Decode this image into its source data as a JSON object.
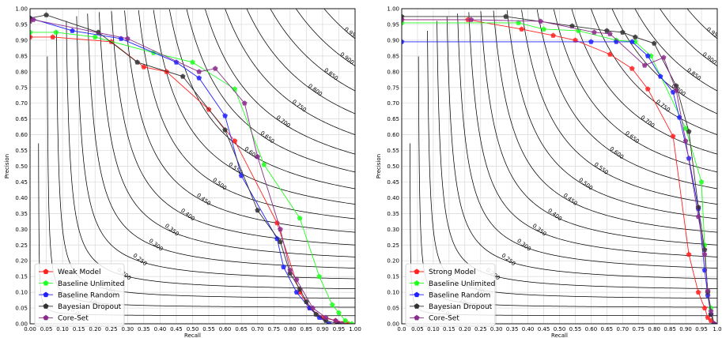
{
  "chart_data": [
    {
      "type": "line",
      "xlabel": "Recall",
      "ylabel": "Precision",
      "xlim": [
        0,
        1
      ],
      "ylim": [
        0,
        1
      ],
      "grid": true,
      "legend_position": "bottom-left",
      "xticks": [
        "0.00",
        "0.05",
        "0.10",
        "0.15",
        "0.20",
        "0.25",
        "0.30",
        "0.35",
        "0.40",
        "0.45",
        "0.50",
        "0.55",
        "0.60",
        "0.65",
        "0.70",
        "0.75",
        "0.80",
        "0.85",
        "0.90",
        "0.95",
        "1.00"
      ],
      "yticks": [
        "0.00",
        "0.05",
        "0.10",
        "0.15",
        "0.20",
        "0.25",
        "0.30",
        "0.35",
        "0.40",
        "0.45",
        "0.50",
        "0.55",
        "0.60",
        "0.65",
        "0.70",
        "0.75",
        "0.80",
        "0.85",
        "0.90",
        "0.95",
        "1.00"
      ],
      "iso_f1_lines": [
        "0.05",
        "0.100",
        "0.150",
        "0.200",
        "0.250",
        "0.300",
        "0.350",
        "0.400",
        "0.450",
        "0.500",
        "0.550",
        "0.600",
        "0.650",
        "0.700",
        "0.750",
        "0.800",
        "0.850",
        "0.900",
        "0.950"
      ],
      "series": [
        {
          "name": "Weak Model",
          "color": "#ff2020",
          "x": [
            0.0,
            0.07,
            0.25,
            0.35,
            0.42,
            0.55,
            0.63,
            0.76,
            0.83,
            0.86,
            0.9,
            0.94,
            0.97,
            0.98
          ],
          "y": [
            0.91,
            0.91,
            0.895,
            0.815,
            0.8,
            0.68,
            0.58,
            0.32,
            0.1,
            0.05,
            0.02,
            0.01,
            0.005,
            0.0
          ]
        },
        {
          "name": "Baseline Unlimited",
          "color": "#20ff20",
          "x": [
            0.0,
            0.08,
            0.2,
            0.38,
            0.5,
            0.63,
            0.72,
            0.83,
            0.89,
            0.93,
            0.95,
            0.97,
            0.99
          ],
          "y": [
            0.925,
            0.925,
            0.91,
            0.86,
            0.83,
            0.745,
            0.505,
            0.335,
            0.15,
            0.06,
            0.035,
            0.01,
            0.0
          ]
        },
        {
          "name": "Baseline Random",
          "color": "#2020ff",
          "x": [
            0.0,
            0.13,
            0.28,
            0.45,
            0.52,
            0.6,
            0.65,
            0.76,
            0.78,
            0.82,
            0.86,
            0.89,
            0.92,
            0.95
          ],
          "y": [
            0.97,
            0.93,
            0.905,
            0.83,
            0.78,
            0.66,
            0.47,
            0.27,
            0.18,
            0.1,
            0.05,
            0.02,
            0.0,
            0.0
          ]
        },
        {
          "name": "Bayesian Dropout",
          "color": "#303030",
          "x": [
            0.0,
            0.05,
            0.21,
            0.33,
            0.47,
            0.6,
            0.7,
            0.77,
            0.8,
            0.83,
            0.85,
            0.88,
            0.91,
            0.95
          ],
          "y": [
            0.97,
            0.98,
            0.925,
            0.83,
            0.785,
            0.615,
            0.36,
            0.26,
            0.16,
            0.11,
            0.07,
            0.03,
            0.01,
            0.0
          ]
        },
        {
          "name": "Core-Set",
          "color": "#8a2b8a",
          "x": [
            0.0,
            0.01,
            0.3,
            0.52,
            0.57,
            0.66,
            0.7,
            0.77,
            0.8,
            0.82,
            0.87,
            0.91,
            0.94,
            0.96
          ],
          "y": [
            0.96,
            0.965,
            0.905,
            0.8,
            0.81,
            0.7,
            0.53,
            0.3,
            0.17,
            0.14,
            0.05,
            0.02,
            0.01,
            0.0
          ]
        }
      ]
    },
    {
      "type": "line",
      "xlabel": "Recall",
      "ylabel": "Precision",
      "xlim": [
        0,
        1
      ],
      "ylim": [
        0,
        1
      ],
      "grid": true,
      "legend_position": "bottom-left",
      "xticks": [
        "0.0",
        "0.05",
        "0.10",
        "0.15",
        "0.20",
        "0.25",
        "0.30",
        "0.35",
        "0.40",
        "0.45",
        "0.50",
        "0.55",
        "0.60",
        "0.65",
        "0.70",
        "0.75",
        "0.80",
        "0.85",
        "0.90",
        "0.95",
        "1.0"
      ],
      "yticks": [
        "0.00",
        "0.05",
        "0.10",
        "0.15",
        "0.20",
        "0.25",
        "0.30",
        "0.35",
        "0.40",
        "0.45",
        "0.50",
        "0.55",
        "0.60",
        "0.65",
        "0.70",
        "0.75",
        "0.80",
        "0.85",
        "0.90",
        "0.95",
        "1.00"
      ],
      "iso_f1_lines": [
        "0.05",
        "0.100",
        "0.150",
        "0.200",
        "0.250",
        "0.300",
        "0.350",
        "0.400",
        "0.450",
        "0.500",
        "0.550",
        "0.600",
        "0.650",
        "0.700",
        "0.750",
        "0.800",
        "0.850",
        "0.900",
        "0.950"
      ],
      "series": [
        {
          "name": "Strong Model",
          "color": "#ff2020",
          "x": [
            0.0,
            0.21,
            0.38,
            0.48,
            0.55,
            0.66,
            0.73,
            0.78,
            0.86,
            0.91,
            0.94,
            0.96,
            0.97,
            0.98,
            0.99
          ],
          "y": [
            0.965,
            0.965,
            0.935,
            0.915,
            0.9,
            0.855,
            0.81,
            0.745,
            0.595,
            0.22,
            0.1,
            0.05,
            0.02,
            0.01,
            0.0
          ]
        },
        {
          "name": "Baseline Unlimited",
          "color": "#20ff20",
          "x": [
            0.0,
            0.37,
            0.45,
            0.56,
            0.68,
            0.74,
            0.79,
            0.9,
            0.95,
            0.96,
            0.97,
            0.98,
            0.99
          ],
          "y": [
            0.955,
            0.955,
            0.935,
            0.93,
            0.9,
            0.895,
            0.85,
            0.62,
            0.45,
            0.25,
            0.1,
            0.05,
            0.0
          ]
        },
        {
          "name": "Baseline Random",
          "color": "#2020ff",
          "x": [
            0.0,
            0.6,
            0.68,
            0.73,
            0.78,
            0.82,
            0.86,
            0.88,
            0.91,
            0.94,
            0.96,
            0.97,
            0.98,
            0.99
          ],
          "y": [
            0.895,
            0.895,
            0.895,
            0.895,
            0.85,
            0.785,
            0.735,
            0.655,
            0.525,
            0.365,
            0.17,
            0.09,
            0.03,
            0.0
          ]
        },
        {
          "name": "Bayesian Dropout",
          "color": "#303030",
          "x": [
            0.0,
            0.33,
            0.54,
            0.65,
            0.7,
            0.74,
            0.8,
            0.87,
            0.91,
            0.94,
            0.96,
            0.97,
            0.98,
            0.99
          ],
          "y": [
            0.975,
            0.975,
            0.945,
            0.93,
            0.925,
            0.91,
            0.89,
            0.755,
            0.61,
            0.37,
            0.235,
            0.1,
            0.03,
            0.0
          ]
        },
        {
          "name": "Core-Set",
          "color": "#8a2b8a",
          "x": [
            0.0,
            0.22,
            0.44,
            0.61,
            0.66,
            0.77,
            0.83,
            0.87,
            0.9,
            0.94,
            0.96,
            0.97,
            0.98,
            0.99
          ],
          "y": [
            0.965,
            0.965,
            0.96,
            0.925,
            0.92,
            0.82,
            0.845,
            0.74,
            0.58,
            0.34,
            0.22,
            0.105,
            0.04,
            0.0
          ]
        }
      ]
    }
  ]
}
